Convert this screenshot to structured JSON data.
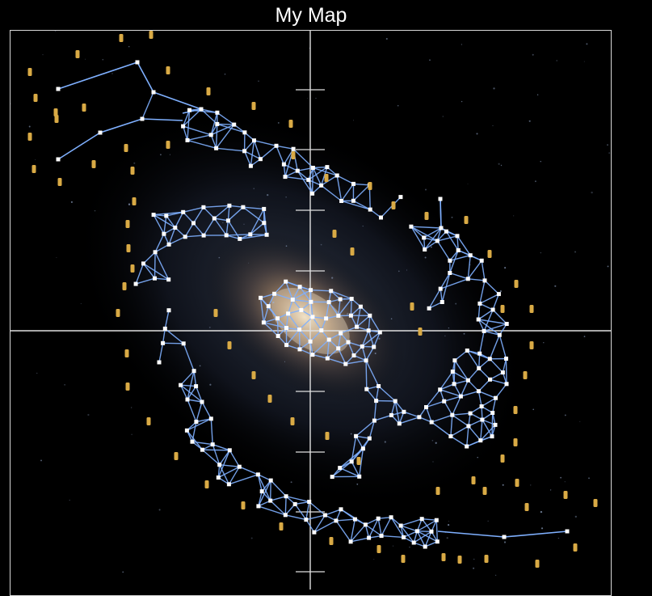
{
  "map": {
    "title": "My Map",
    "background": "galaxy-image",
    "colors": {
      "edge": "#7fb0ff",
      "node": "#ffffff",
      "resource": "#d9aa45",
      "axis": "#e0e0e0",
      "frame": "#d8d8d8"
    },
    "icons": [
      "resource-token-icon",
      "star-node-icon"
    ]
  }
}
